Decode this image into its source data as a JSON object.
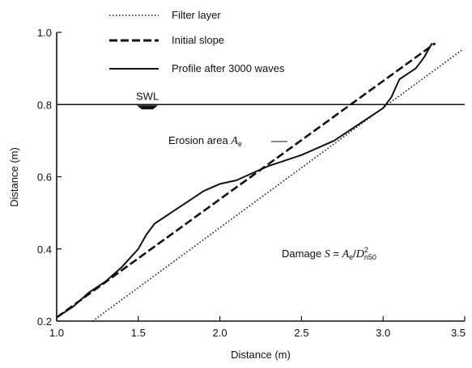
{
  "chart_data": {
    "type": "line",
    "title": "",
    "xlabel": "Distance (m)",
    "ylabel": "Distance (m)",
    "xlim": [
      1.0,
      3.5
    ],
    "ylim": [
      0.2,
      1.0
    ],
    "xticks": [
      1.0,
      1.5,
      2.0,
      2.5,
      3.0,
      3.5
    ],
    "xtick_labels": [
      "1.0",
      "1.5",
      "2.0",
      "2.5",
      "3.0",
      "3.5"
    ],
    "yticks": [
      0.2,
      0.4,
      0.6,
      0.8,
      1.0
    ],
    "ytick_labels": [
      "0.2",
      "0.4",
      "0.6",
      "0.8",
      "1.0"
    ],
    "grid": false,
    "legend_position": "top-left",
    "series": [
      {
        "name": "Filter layer",
        "style": "dotted",
        "x": [
          1.22,
          3.48
        ],
        "y": [
          0.2,
          0.95
        ]
      },
      {
        "name": "Initial slope",
        "style": "dashed",
        "x": [
          1.0,
          3.32
        ],
        "y": [
          0.21,
          0.97
        ]
      },
      {
        "name": "Profile after 3000 waves",
        "style": "solid",
        "x": [
          1.0,
          1.1,
          1.2,
          1.3,
          1.4,
          1.5,
          1.55,
          1.6,
          1.7,
          1.8,
          1.9,
          2.0,
          2.1,
          2.2,
          2.3,
          2.4,
          2.5,
          2.6,
          2.7,
          2.8,
          2.9,
          3.0,
          3.05,
          3.1,
          3.2,
          3.25,
          3.3
        ],
        "y": [
          0.21,
          0.24,
          0.28,
          0.31,
          0.35,
          0.4,
          0.44,
          0.47,
          0.5,
          0.53,
          0.56,
          0.58,
          0.59,
          0.61,
          0.63,
          0.645,
          0.66,
          0.68,
          0.7,
          0.73,
          0.76,
          0.79,
          0.82,
          0.87,
          0.9,
          0.93,
          0.97
        ]
      }
    ],
    "annotations": {
      "swl_label": "SWL",
      "swl_y": 0.8,
      "erosion_text": "Erosion area ",
      "erosion_symbol": "A",
      "erosion_sub": "e",
      "damage_text": "Damage ",
      "damage_symbol": "S",
      "damage_eq": " = ",
      "damage_rhs": "A",
      "damage_rhs_sub": "e",
      "damage_div": "/",
      "damage_D": "D",
      "damage_D_sup": "2",
      "damage_D_sub": "n50"
    }
  }
}
